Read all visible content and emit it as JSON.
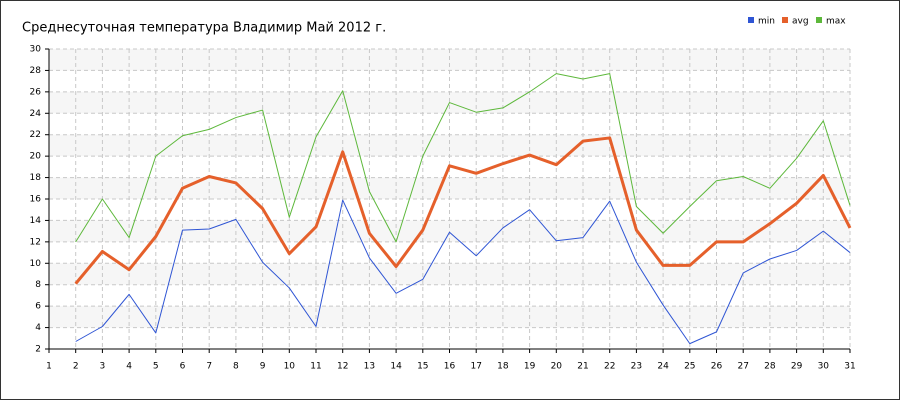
{
  "chart_data": {
    "type": "line",
    "title": "Среднесуточная температура Владимир  Май 2012 г.",
    "x": [
      1,
      2,
      3,
      4,
      5,
      6,
      7,
      8,
      9,
      10,
      11,
      12,
      13,
      14,
      15,
      16,
      17,
      18,
      19,
      20,
      21,
      22,
      23,
      24,
      25,
      26,
      27,
      28,
      29,
      30,
      31
    ],
    "xlim": [
      1,
      31
    ],
    "xticks": [
      1,
      2,
      3,
      4,
      5,
      6,
      7,
      8,
      9,
      10,
      11,
      12,
      13,
      14,
      15,
      16,
      17,
      18,
      19,
      20,
      21,
      22,
      23,
      24,
      25,
      26,
      27,
      28,
      29,
      30,
      31
    ],
    "ylim": [
      2,
      30
    ],
    "yticks": [
      2,
      4,
      6,
      8,
      10,
      12,
      14,
      16,
      18,
      20,
      22,
      24,
      26,
      28,
      30
    ],
    "grid": true,
    "legend": "top-right",
    "series": [
      {
        "name": "min",
        "color": "#2f55d4",
        "width": 1,
        "values": [
          null,
          2.7,
          4.1,
          7.1,
          3.5,
          13.1,
          13.2,
          14.1,
          10.1,
          7.7,
          4.1,
          15.9,
          10.5,
          7.2,
          8.5,
          12.9,
          10.7,
          13.3,
          15.0,
          12.1,
          12.4,
          15.8,
          10.1,
          6.1,
          2.5,
          3.6,
          9.1,
          10.4,
          11.2,
          13.0,
          11.0
        ]
      },
      {
        "name": "avg",
        "color": "#e5602b",
        "width": 3,
        "values": [
          null,
          8.1,
          11.1,
          9.4,
          12.5,
          17.0,
          18.1,
          17.5,
          15.1,
          10.9,
          13.4,
          20.4,
          12.8,
          9.7,
          13.1,
          19.1,
          18.4,
          19.3,
          20.1,
          19.2,
          21.4,
          21.7,
          13.1,
          9.8,
          9.8,
          12.0,
          12.0,
          13.7,
          15.6,
          18.2,
          13.3
        ]
      },
      {
        "name": "max",
        "color": "#5db83b",
        "width": 1,
        "values": [
          null,
          12.0,
          16.0,
          12.4,
          20.0,
          21.9,
          22.5,
          23.6,
          24.3,
          14.3,
          21.8,
          26.1,
          16.7,
          12.0,
          20.0,
          25.0,
          24.1,
          24.5,
          26.0,
          27.7,
          27.2,
          27.7,
          15.3,
          12.8,
          15.3,
          17.7,
          18.1,
          17.0,
          19.8,
          23.3,
          15.4
        ]
      }
    ]
  }
}
